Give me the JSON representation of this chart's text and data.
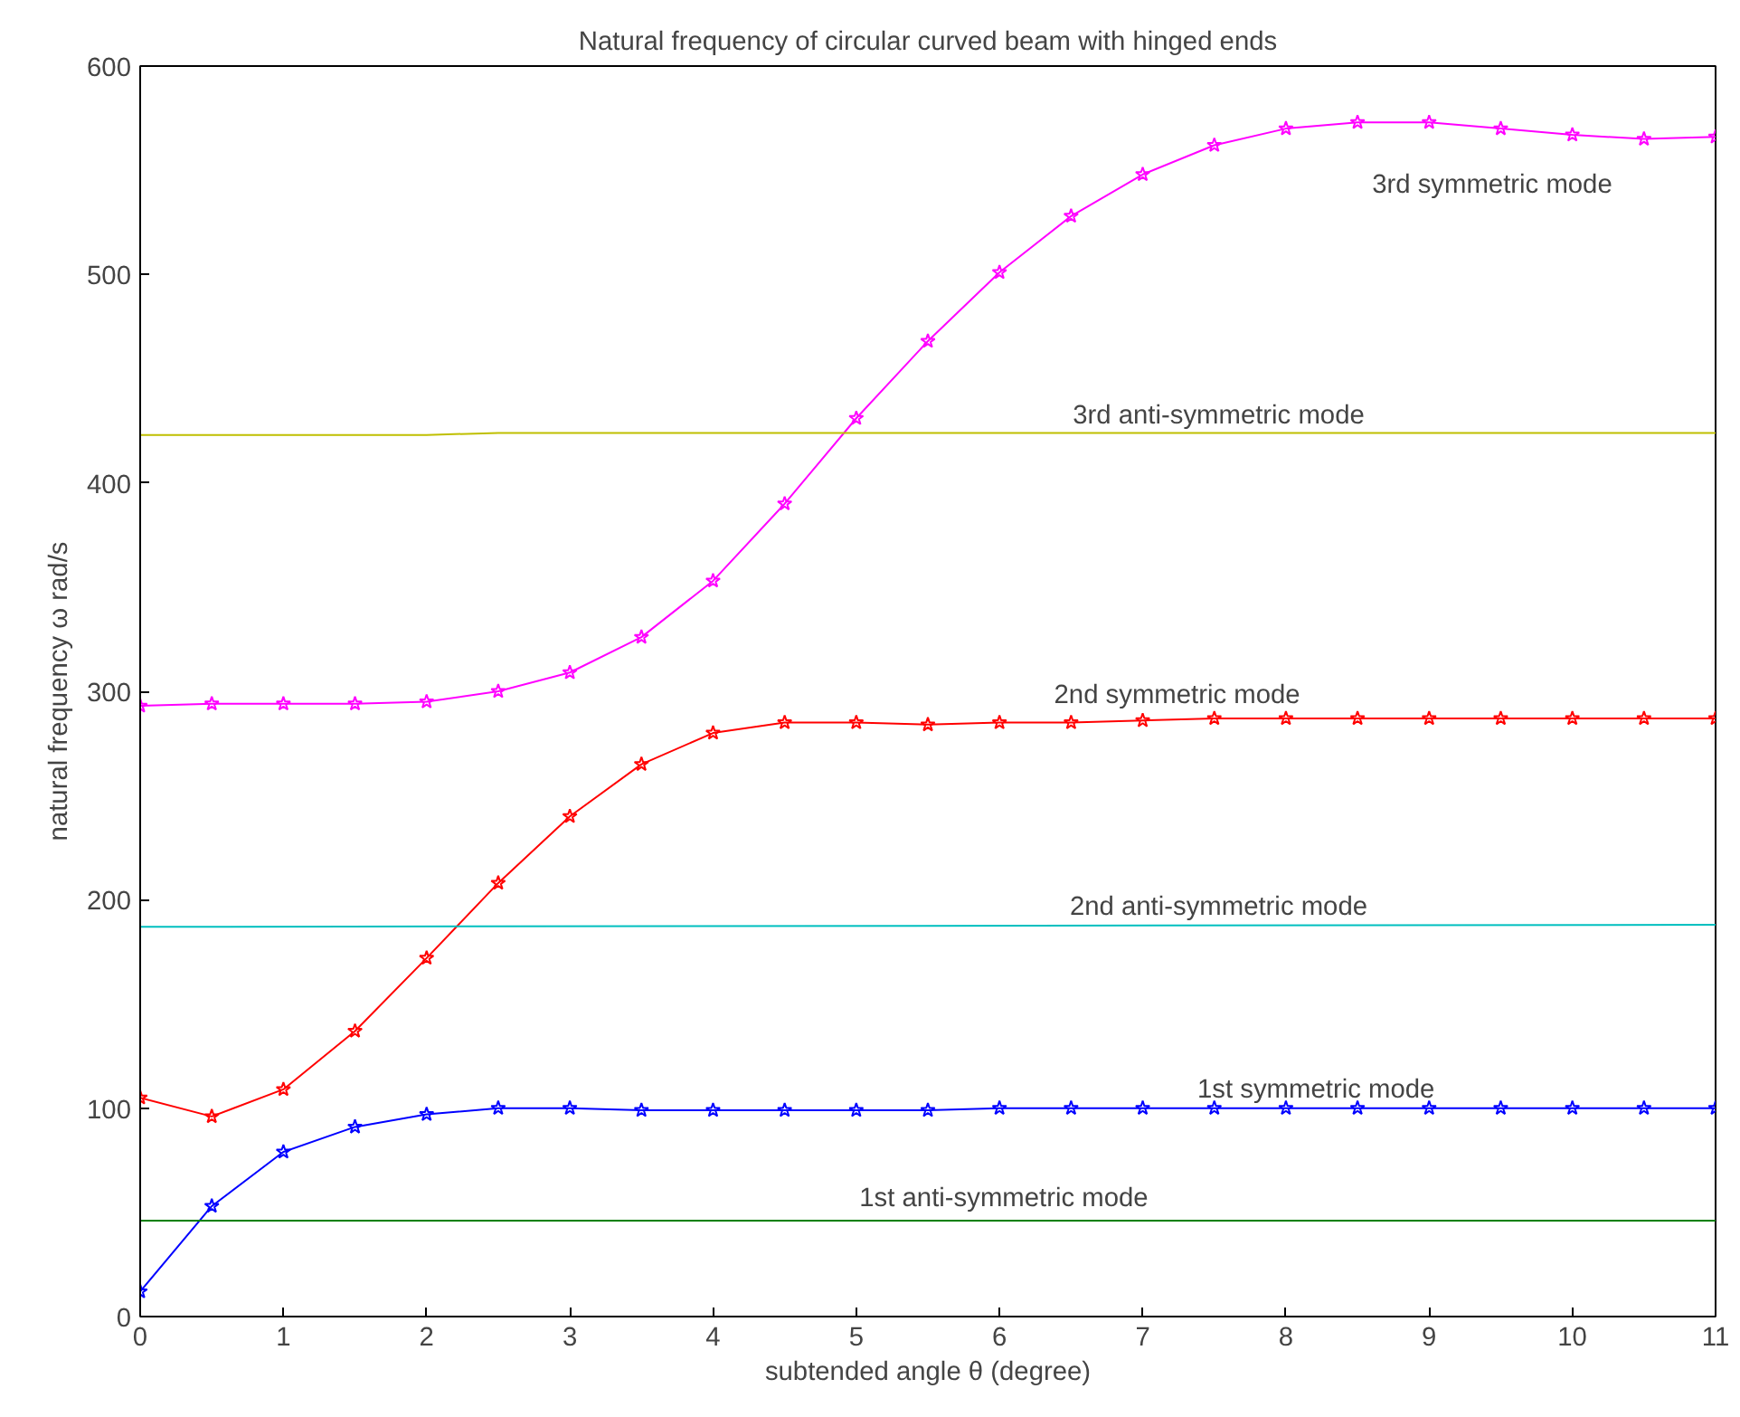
{
  "chart_data": {
    "type": "line",
    "title": "Natural frequency of circular curved beam with hinged ends",
    "xlabel": "subtended angle θ (degree)",
    "ylabel": "natural frequency ω rad/s",
    "x": [
      0,
      0.5,
      1,
      1.5,
      2,
      2.5,
      3,
      3.5,
      4,
      4.5,
      5,
      5.5,
      6,
      6.5,
      7,
      7.5,
      8,
      8.5,
      9,
      9.5,
      10,
      10.5,
      11
    ],
    "xlim": [
      0,
      11
    ],
    "xticks": [
      0,
      1,
      2,
      3,
      4,
      5,
      6,
      7,
      8,
      9,
      10,
      11
    ],
    "ylim": [
      0,
      600
    ],
    "yticks": [
      0,
      100,
      200,
      300,
      400,
      500,
      600
    ],
    "grid": false,
    "series": [
      {
        "name": "3rd symmetric mode",
        "color": "#ff00ff",
        "marker": "star",
        "values": [
          293,
          294,
          294,
          294,
          295,
          300,
          309,
          326,
          353,
          390,
          431,
          468,
          501,
          528,
          548,
          562,
          570,
          573,
          573,
          570,
          567,
          565,
          566
        ]
      },
      {
        "name": "2nd symmetric mode",
        "color": "#ff0000",
        "marker": "star",
        "values": [
          105,
          96,
          109,
          137,
          172,
          208,
          240,
          265,
          280,
          285,
          285,
          284,
          285,
          285,
          286,
          287,
          287,
          287,
          287,
          287,
          287,
          287,
          287
        ]
      },
      {
        "name": "1st symmetric mode",
        "color": "#0000ff",
        "marker": "star",
        "values": [
          12,
          53,
          79,
          91,
          97,
          100,
          100,
          99,
          99,
          99,
          99,
          99,
          100,
          100,
          100,
          100,
          100,
          100,
          100,
          100,
          100,
          100,
          100
        ]
      },
      {
        "name": "3rd anti-symmetric mode",
        "color": "#bfbf00",
        "marker": "none",
        "x": [
          0,
          2,
          2.5,
          11
        ],
        "values": [
          423,
          423,
          424,
          424
        ]
      },
      {
        "name": "2nd anti-symmetric mode",
        "color": "#00bfbf",
        "marker": "none",
        "x": [
          0,
          11
        ],
        "values": [
          187,
          188
        ]
      },
      {
        "name": "1st anti-symmetric mode",
        "color": "#008000",
        "marker": "none",
        "x": [
          0,
          11
        ],
        "values": [
          46,
          46
        ]
      }
    ]
  }
}
